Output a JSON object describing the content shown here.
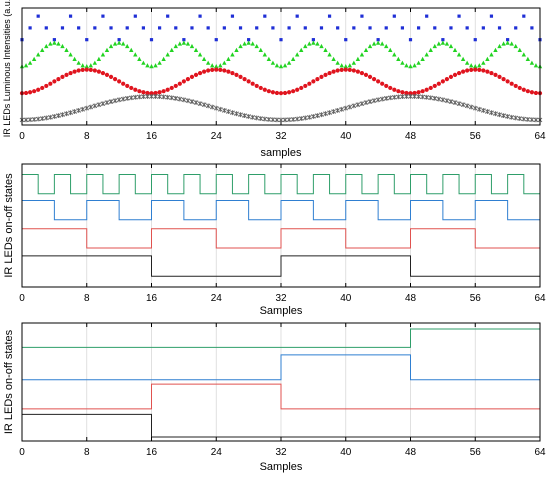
{
  "chart_data": [
    {
      "type": "scatter",
      "xlabel": "samples",
      "ylabel": "IR LEDs Luminous Intensities (a.u.)",
      "xlim": [
        0,
        64
      ],
      "x_ticks": [
        "0",
        "8",
        "16",
        "24",
        "32",
        "40",
        "48",
        "56",
        "64"
      ],
      "grid": true,
      "series": [
        {
          "marker": "square",
          "color": "#1f2fd6",
          "period": 4,
          "phase": 0,
          "center": 0.87,
          "amplitude": 0.11,
          "sampling": 1
        },
        {
          "marker": "triangle",
          "color": "#22d322",
          "period": 8,
          "phase": 0,
          "center": 0.62,
          "amplitude": 0.11,
          "sampling": 0.5
        },
        {
          "marker": "circle",
          "color": "#e0141e",
          "period": 16,
          "phase": 0,
          "center": 0.37,
          "amplitude": 0.11,
          "sampling": 0.5
        },
        {
          "marker": "cross",
          "color": "#606060",
          "period": 32,
          "phase": 0,
          "center": 0.12,
          "amplitude": 0.11,
          "sampling": 0.5
        }
      ]
    },
    {
      "type": "line",
      "xlabel": "Samples",
      "ylabel": "IR LEDs on-off states",
      "xlim": [
        0,
        64
      ],
      "x_ticks": [
        "0",
        "8",
        "16",
        "24",
        "32",
        "40",
        "48",
        "56",
        "64"
      ],
      "grid": true,
      "series": [
        {
          "color": "#2f9e6a",
          "period": 4,
          "duty": 0.5,
          "low": 0.79,
          "high": 0.96
        },
        {
          "color": "#2f7fd1",
          "period": 8,
          "duty": 0.5,
          "low": 0.56,
          "high": 0.73
        },
        {
          "color": "#e0524f",
          "period": 16,
          "duty": 0.5,
          "low": 0.31,
          "high": 0.48
        },
        {
          "color": "#222222",
          "period": 32,
          "duty": 0.5,
          "low": 0.06,
          "high": 0.24
        }
      ]
    },
    {
      "type": "line",
      "xlabel": "Samples",
      "ylabel": "IR LEDs on-off states",
      "xlim": [
        0,
        64
      ],
      "x_ticks": [
        "0",
        "8",
        "16",
        "24",
        "32",
        "40",
        "48",
        "56",
        "64"
      ],
      "grid": true,
      "series": [
        {
          "color": "#2f9e6a",
          "steps": [
            [
              0,
              0.83
            ],
            [
              48,
              0.83
            ],
            [
              48,
              1.0
            ],
            [
              64,
              1.0
            ]
          ]
        },
        {
          "color": "#2f7fd1",
          "steps": [
            [
              0,
              0.53
            ],
            [
              32,
              0.53
            ],
            [
              32,
              0.76
            ],
            [
              48,
              0.76
            ],
            [
              48,
              0.53
            ],
            [
              64,
              0.53
            ]
          ]
        },
        {
          "color": "#e0524f",
          "steps": [
            [
              0,
              0.26
            ],
            [
              16,
              0.26
            ],
            [
              16,
              0.49
            ],
            [
              32,
              0.49
            ],
            [
              32,
              0.26
            ],
            [
              64,
              0.26
            ]
          ]
        },
        {
          "color": "#222222",
          "steps": [
            [
              0,
              0.21
            ],
            [
              16,
              0.21
            ],
            [
              16,
              0.0
            ],
            [
              64,
              0.0
            ]
          ]
        }
      ]
    }
  ]
}
